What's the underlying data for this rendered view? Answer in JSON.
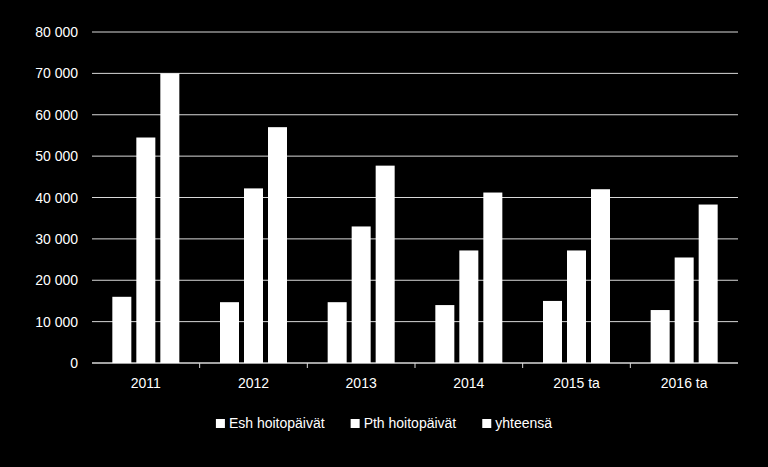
{
  "chart_data": {
    "type": "bar",
    "categories": [
      "2011",
      "2012",
      "2013",
      "2014",
      "2015 ta",
      "2016 ta"
    ],
    "series": [
      {
        "name": "Esh hoitopäivät",
        "color": "#ffffff",
        "values": [
          16000,
          14700,
          14700,
          14000,
          15000,
          12800
        ]
      },
      {
        "name": "Pth hoitopäivät",
        "color": "#ffffff",
        "values": [
          54500,
          42200,
          33000,
          27200,
          27200,
          25500
        ]
      },
      {
        "name": "yhteensä",
        "color": "#ffffff",
        "values": [
          70000,
          57000,
          47700,
          41200,
          42000,
          38300
        ]
      }
    ],
    "ylim": [
      0,
      80000
    ],
    "yticks": [
      0,
      {
        "value": 10000,
        "label": "10 000"
      },
      {
        "value": 20000,
        "label": "20 000"
      },
      {
        "value": 30000,
        "label": "30 000"
      },
      {
        "value": 40000,
        "label": "40 000"
      },
      {
        "value": 50000,
        "label": "50 000"
      },
      {
        "value": 60000,
        "label": "60 000"
      },
      {
        "value": 70000,
        "label": "70 000"
      },
      {
        "value": 80000,
        "label": "80 000"
      }
    ],
    "grid": true,
    "legend": "bottom"
  }
}
